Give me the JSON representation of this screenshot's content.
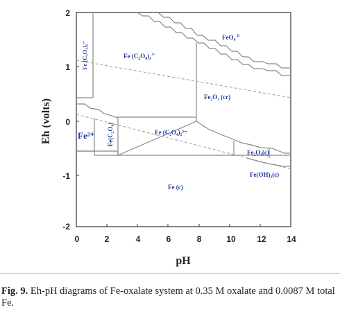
{
  "diagram": {
    "ylabel": "Eh (volts)",
    "xlabel": "pH",
    "x_ticks": [
      "0",
      "2",
      "4",
      "6",
      "8",
      "10",
      "12",
      "14"
    ],
    "y_ticks": [
      "2",
      "1",
      "0",
      "-1",
      "-2"
    ],
    "regions": [
      {
        "name": "feo4",
        "base": "FeO",
        "sub": "4",
        "sup": "2-",
        "color": "#1f3aa0"
      },
      {
        "name": "fe-c2o4-3",
        "base": "Fe (C",
        "sub": "2",
        "mid": "O",
        "sub2": "4",
        "close": ")",
        "sub3": "3",
        "sup": "3-",
        "color": "#1f3aa0"
      },
      {
        "name": "fe-c2o4-2-vertical",
        "text": "Fe (C₂O₄)₂⁻",
        "color": "#1f3aa0"
      },
      {
        "name": "fe2o3",
        "text": "Fe₂O₃ (cr)",
        "color": "#1f3aa0"
      },
      {
        "name": "fe2plus",
        "text": "Fe²⁺",
        "color": "#1f3aa0"
      },
      {
        "name": "fe-c2o4-vertical",
        "text": "Fe(C₂O₄)",
        "color": "#1f3aa0"
      },
      {
        "name": "fe-c2o4-2-2minus",
        "text": "Fe (C₂O₄)₂²⁻",
        "color": "#1f3aa0"
      },
      {
        "name": "fe3o4",
        "text": "Fe₃O₄(c)",
        "color": "#1f3aa0"
      },
      {
        "name": "feoh2",
        "text": "Fe(OH)₂(c)",
        "color": "#1f3aa0"
      },
      {
        "name": "fe-c",
        "text": "Fe (c)",
        "color": "#1f3aa0"
      }
    ]
  },
  "caption": {
    "label": "Fig. 9.",
    "text": " Eh-pH diagrams of Fe-oxalate system at 0.35 M oxalate and 0.0087 M total Fe."
  }
}
